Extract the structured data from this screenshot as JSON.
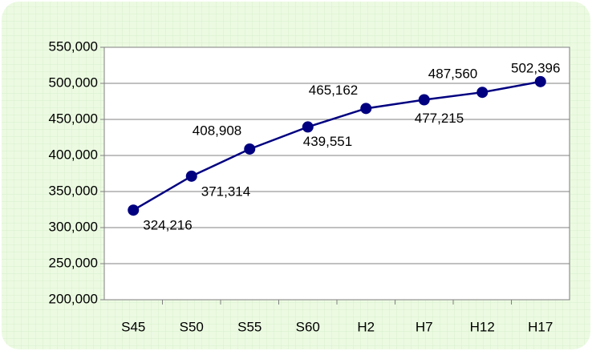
{
  "chart_data": {
    "type": "line",
    "categories": [
      "S45",
      "S50",
      "S55",
      "S60",
      "H2",
      "H7",
      "H12",
      "H17"
    ],
    "series": [
      {
        "color": "#000080",
        "values": [
          324216,
          371314,
          408908,
          439551,
          465162,
          477215,
          487560,
          502396
        ],
        "value_labels": [
          "324,216",
          "371,314",
          "408,908",
          "439,551",
          "465,162",
          "477,215",
          "487,560",
          "502,396"
        ]
      }
    ],
    "ylim": [
      200000,
      550000
    ],
    "yticks": [
      {
        "value": 200000,
        "label": "200,000"
      },
      {
        "value": 250000,
        "label": "250,000"
      },
      {
        "value": 300000,
        "label": "300,000"
      },
      {
        "value": 350000,
        "label": "350,000"
      },
      {
        "value": 400000,
        "label": "400,000"
      },
      {
        "value": 450000,
        "label": "450,000"
      },
      {
        "value": 500000,
        "label": "500,000"
      },
      {
        "value": 550000,
        "label": "550,000"
      }
    ],
    "grid": true
  }
}
